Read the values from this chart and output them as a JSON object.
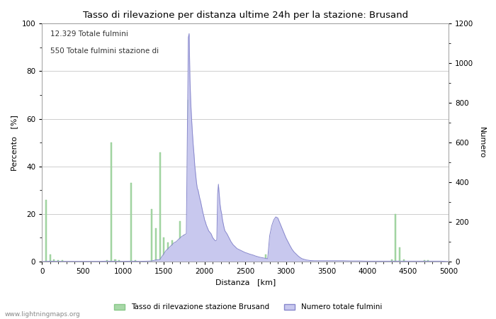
{
  "title": "Tasso di rilevazione per distanza ultime 24h per la stazione: Brusand",
  "xlabel": "Distanza   [km]",
  "ylabel_left": "Percento   [%]",
  "ylabel_right": "Numero",
  "annotation_line1": "12.329 Totale fulmini",
  "annotation_line2": "550 Totale fulmini stazione di",
  "legend_label1": "Tasso di rilevazione stazione Brusand",
  "legend_label2": "Numero totale fulmini",
  "watermark": "www.lightningmaps.org",
  "xlim": [
    0,
    5000
  ],
  "ylim_left": [
    0,
    100
  ],
  "ylim_right": [
    0,
    1200
  ],
  "color_green": "#a8d8a8",
  "color_green_edge": "#88c888",
  "color_blue_fill": "#c8c8ee",
  "color_blue_line": "#8888cc",
  "background_color": "#ffffff",
  "grid_color": "#bbbbbb",
  "green_bars": [
    [
      50,
      26
    ],
    [
      100,
      3
    ],
    [
      150,
      1
    ],
    [
      200,
      0.5
    ],
    [
      250,
      0.5
    ],
    [
      800,
      0.5
    ],
    [
      850,
      50
    ],
    [
      900,
      1
    ],
    [
      950,
      0.5
    ],
    [
      1100,
      33
    ],
    [
      1150,
      0.5
    ],
    [
      1350,
      22
    ],
    [
      1400,
      14
    ],
    [
      1450,
      46
    ],
    [
      1500,
      10
    ],
    [
      1550,
      8
    ],
    [
      1600,
      9
    ],
    [
      1650,
      8
    ],
    [
      1700,
      17
    ],
    [
      1750,
      11
    ],
    [
      1800,
      68
    ],
    [
      1850,
      43
    ],
    [
      1900,
      22
    ],
    [
      1950,
      15
    ],
    [
      2000,
      5
    ],
    [
      2050,
      4
    ],
    [
      2100,
      3
    ],
    [
      2150,
      2
    ],
    [
      2200,
      2
    ],
    [
      2250,
      2
    ],
    [
      2300,
      2
    ],
    [
      2350,
      1
    ],
    [
      2400,
      1
    ],
    [
      2450,
      1
    ],
    [
      2700,
      1
    ],
    [
      2750,
      3
    ],
    [
      2800,
      2
    ],
    [
      2850,
      2
    ],
    [
      2900,
      2
    ],
    [
      2950,
      2
    ],
    [
      3000,
      1
    ],
    [
      3050,
      1
    ],
    [
      4300,
      1
    ],
    [
      4350,
      20
    ],
    [
      4400,
      6
    ],
    [
      4450,
      1
    ],
    [
      4700,
      0.5
    ],
    [
      4750,
      0.5
    ]
  ],
  "blue_x": [
    0,
    25,
    50,
    75,
    100,
    150,
    200,
    250,
    300,
    350,
    400,
    450,
    500,
    600,
    700,
    800,
    900,
    1000,
    1100,
    1200,
    1300,
    1350,
    1400,
    1450,
    1500,
    1525,
    1550,
    1575,
    1600,
    1625,
    1650,
    1675,
    1700,
    1725,
    1750,
    1775,
    1800,
    1810,
    1820,
    1830,
    1840,
    1850,
    1860,
    1870,
    1880,
    1890,
    1900,
    1910,
    1920,
    1930,
    1940,
    1950,
    1960,
    1970,
    1980,
    1990,
    2000,
    2010,
    2020,
    2030,
    2040,
    2050,
    2060,
    2070,
    2080,
    2090,
    2100,
    2110,
    2120,
    2130,
    2140,
    2150,
    2160,
    2170,
    2180,
    2190,
    2200,
    2210,
    2220,
    2230,
    2240,
    2250,
    2275,
    2300,
    2325,
    2350,
    2375,
    2400,
    2425,
    2450,
    2475,
    2500,
    2525,
    2550,
    2575,
    2600,
    2625,
    2650,
    2675,
    2700,
    2725,
    2750,
    2775,
    2800,
    2825,
    2850,
    2875,
    2900,
    2925,
    2950,
    2975,
    3000,
    3025,
    3050,
    3075,
    3100,
    3125,
    3150,
    3175,
    3200,
    3250,
    3300,
    3350,
    3400,
    3450,
    3500,
    3600,
    3700,
    3800,
    3900,
    4000,
    4100,
    4200,
    4300,
    4350,
    4400,
    4450,
    4500,
    4600,
    4700,
    4800,
    4900,
    5000
  ],
  "blue_y": [
    0,
    0,
    1,
    1,
    2,
    1,
    1,
    1,
    1,
    1,
    1,
    1,
    1,
    1,
    1,
    2,
    1,
    1,
    2,
    1,
    2,
    3,
    8,
    10,
    40,
    55,
    65,
    75,
    85,
    95,
    100,
    110,
    120,
    128,
    135,
    140,
    1130,
    1150,
    920,
    800,
    720,
    650,
    590,
    540,
    480,
    440,
    400,
    370,
    360,
    340,
    320,
    305,
    285,
    265,
    245,
    230,
    210,
    200,
    185,
    175,
    165,
    155,
    150,
    145,
    140,
    130,
    120,
    115,
    110,
    105,
    105,
    110,
    340,
    390,
    340,
    290,
    260,
    240,
    210,
    190,
    170,
    155,
    140,
    120,
    100,
    85,
    75,
    65,
    60,
    55,
    50,
    45,
    42,
    38,
    35,
    32,
    28,
    25,
    22,
    20,
    18,
    16,
    14,
    130,
    180,
    210,
    225,
    220,
    195,
    170,
    145,
    120,
    100,
    80,
    62,
    48,
    38,
    28,
    20,
    14,
    8,
    5,
    4,
    4,
    4,
    4,
    4,
    4,
    3,
    3,
    2,
    2,
    2,
    2,
    2,
    2,
    2,
    2,
    2,
    2,
    2,
    2,
    0
  ]
}
